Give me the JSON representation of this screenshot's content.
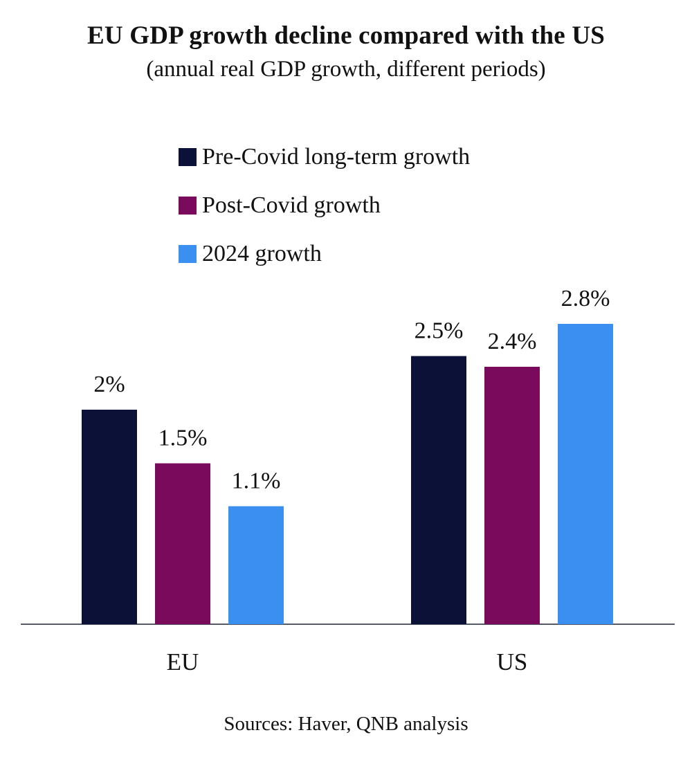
{
  "chart_data": {
    "type": "bar",
    "title": "EU GDP growth decline compared with the US",
    "subtitle": "(annual real GDP growth, different periods)",
    "categories": [
      "EU",
      "US"
    ],
    "series": [
      {
        "name": "Pre-Covid long-term growth",
        "color": "#0c1237",
        "values": [
          2.0,
          2.5
        ],
        "labels": [
          "2%",
          "2.5%"
        ]
      },
      {
        "name": "Post-Covid growth",
        "color": "#7a0a5c",
        "values": [
          1.5,
          2.4
        ],
        "labels": [
          "1.5%",
          "2.4%"
        ]
      },
      {
        "name": "2024 growth",
        "color": "#3b8ff0",
        "values": [
          1.1,
          2.8
        ],
        "labels": [
          "1.1%",
          "2.8%"
        ]
      }
    ],
    "ylim": [
      0,
      2.8
    ],
    "xlabel": "",
    "ylabel": "",
    "grid": false,
    "source": "Sources: Haver, QNB analysis"
  }
}
